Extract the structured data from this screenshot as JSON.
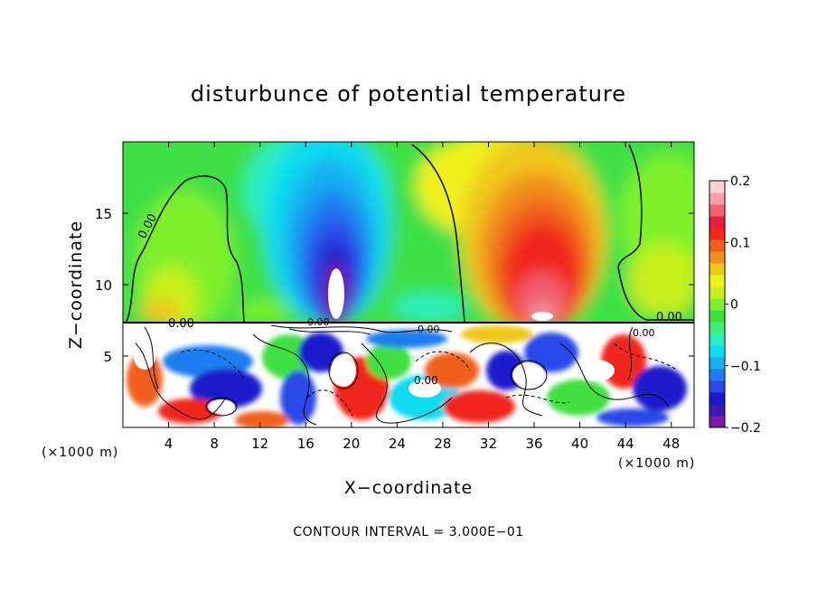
{
  "chart_data": {
    "type": "heatmap",
    "title": "disturbunce of potential temperature",
    "xlabel": "X−coordinate",
    "ylabel": "Z−coordinate",
    "x_unit_left": "(×1000 m)",
    "x_unit_right": "(×1000 m)",
    "xlim": [
      0,
      50
    ],
    "ylim": [
      0,
      20
    ],
    "x_ticks": [
      "4",
      "8",
      "12",
      "16",
      "20",
      "24",
      "28",
      "32",
      "36",
      "40",
      "44",
      "48"
    ],
    "y_ticks": [
      "5",
      "10",
      "15"
    ],
    "contour_interval_text": "CONTOUR INTERVAL = 3.000E−01",
    "contour_labels": [
      "0.00",
      "0.00",
      "0.00",
      "0.00",
      "0.00",
      "0.00",
      "0.00"
    ],
    "colorbar": {
      "range": [
        -0.2,
        0.2
      ],
      "tick_labels": [
        "0.2",
        "0.1",
        "0",
        "−0.1",
        "−0.2"
      ],
      "colors": [
        "#7a1aa8",
        "#3a1ab0",
        "#1a1acc",
        "#2a4ae8",
        "#1e7ef0",
        "#16b0f0",
        "#10dcf0",
        "#2af0c0",
        "#3cf078",
        "#40e040",
        "#7ef02a",
        "#c8f01e",
        "#f0f01a",
        "#f0c81a",
        "#f0901a",
        "#f0601a",
        "#f0281a",
        "#e81e3a",
        "#f06070",
        "#f8a0a8",
        "#ffd0d4"
      ]
    },
    "features": [
      {
        "name": "cold anomaly",
        "x_center": 18.5,
        "z_top": 17,
        "min": -0.2
      },
      {
        "name": "warm anomaly",
        "x_center": 36,
        "z_top": 18,
        "max": 0.17
      },
      {
        "name": "inversion layer",
        "z": 7.3
      }
    ]
  }
}
